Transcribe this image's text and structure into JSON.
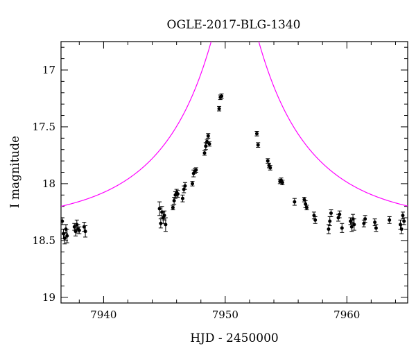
{
  "chart_data": {
    "type": "scatter",
    "title": "OGLE-2017-BLG-1340",
    "xlabel": "HJD - 2450000",
    "ylabel": "I magnitude",
    "xlim": [
      7936.5,
      7965
    ],
    "ylim": [
      19.05,
      16.75
    ],
    "y_inverted": true,
    "xticks": [
      7940,
      7950,
      7960
    ],
    "yticks": [
      17,
      17.5,
      18,
      18.5,
      19
    ],
    "ytick_labels": [
      "17",
      "17.5",
      "18",
      "18.5",
      "19"
    ],
    "grid": false,
    "colors": {
      "data": "#000000",
      "model": "#ff00ff",
      "axes": "#000000"
    },
    "model": {
      "name": "",
      "form": "point-lens",
      "t0": 7950.8,
      "tE": 10.0,
      "u0": 0.128,
      "baseline": 18.35
    },
    "series": [
      {
        "kind": "points_with_errorbars",
        "x": [
          7936.6,
          7936.7,
          7936.8,
          7936.9,
          7937.0,
          7937.6,
          7937.7,
          7937.8,
          7937.9,
          7938.0,
          7938.4,
          7938.5,
          7944.6,
          7944.7,
          7944.8,
          7944.9,
          7945.0,
          7945.1,
          7945.7,
          7945.8,
          7945.9,
          7946.0,
          7946.1,
          7946.5,
          7946.6,
          7946.7,
          7947.3,
          7947.4,
          7947.5,
          7947.6,
          7948.3,
          7948.4,
          7948.5,
          7948.6,
          7948.7,
          7949.5,
          7949.6,
          7949.7,
          7952.6,
          7952.7,
          7953.5,
          7953.6,
          7953.7,
          7954.5,
          7954.6,
          7954.7,
          7955.7,
          7956.5,
          7956.6,
          7956.7,
          7957.3,
          7957.4,
          7958.5,
          7958.6,
          7958.7,
          7959.3,
          7959.4,
          7959.6,
          7960.3,
          7960.4,
          7960.5,
          7960.6,
          7961.4,
          7961.5,
          7962.3,
          7962.4,
          7963.5,
          7964.4,
          7964.5,
          7964.6,
          7964.7
        ],
        "y": [
          18.33,
          18.44,
          18.48,
          18.4,
          18.46,
          18.38,
          18.42,
          18.36,
          18.4,
          18.41,
          18.38,
          18.42,
          18.22,
          18.35,
          18.25,
          18.3,
          18.28,
          18.36,
          18.21,
          18.15,
          18.1,
          18.08,
          18.09,
          18.13,
          18.05,
          18.02,
          18.0,
          17.91,
          17.89,
          17.88,
          17.73,
          17.67,
          17.63,
          17.58,
          17.65,
          17.34,
          17.24,
          17.23,
          17.56,
          17.66,
          17.8,
          17.84,
          17.86,
          17.98,
          17.97,
          17.99,
          18.16,
          18.14,
          18.18,
          18.21,
          18.28,
          18.32,
          18.4,
          18.33,
          18.26,
          18.3,
          18.27,
          18.39,
          18.33,
          18.38,
          18.31,
          18.36,
          18.35,
          18.31,
          18.34,
          18.39,
          18.32,
          18.36,
          18.4,
          18.28,
          18.33
        ],
        "yerr": [
          0.03,
          0.04,
          0.05,
          0.04,
          0.06,
          0.03,
          0.04,
          0.04,
          0.04,
          0.03,
          0.04,
          0.05,
          0.06,
          0.04,
          0.05,
          0.05,
          0.04,
          0.06,
          0.02,
          0.03,
          0.03,
          0.03,
          0.03,
          0.03,
          0.03,
          0.03,
          0.02,
          0.03,
          0.02,
          0.02,
          0.02,
          0.03,
          0.02,
          0.02,
          0.02,
          0.02,
          0.02,
          0.02,
          0.02,
          0.02,
          0.02,
          0.02,
          0.02,
          0.02,
          0.02,
          0.02,
          0.03,
          0.02,
          0.03,
          0.02,
          0.03,
          0.03,
          0.04,
          0.04,
          0.03,
          0.03,
          0.03,
          0.04,
          0.03,
          0.04,
          0.04,
          0.05,
          0.03,
          0.03,
          0.03,
          0.03,
          0.03,
          0.04,
          0.04,
          0.03,
          0.03
        ]
      }
    ]
  }
}
